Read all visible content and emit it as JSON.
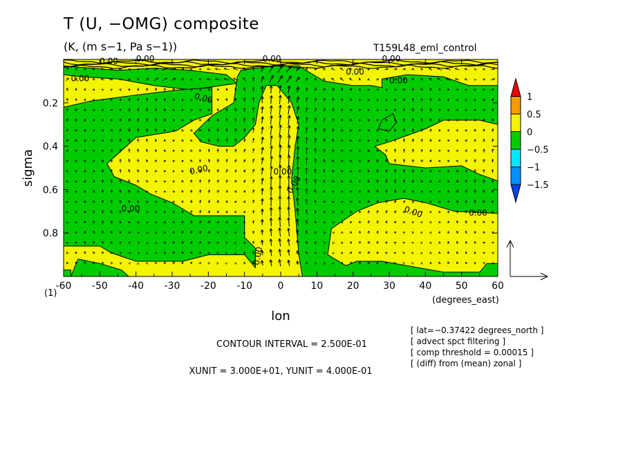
{
  "chart_data": {
    "type": "heatmap",
    "title": "T (U, −OMG) composite",
    "units": "(K, (m s−1, Pa s−1))",
    "run_label": "T159L48_eml_control",
    "xlabel": "lon",
    "x_units_label": "(degrees_east)",
    "ylabel": "sigma",
    "x_range": [
      -60,
      60
    ],
    "y_range": [
      0.0,
      1.0
    ],
    "x_ticks": [
      -60,
      -50,
      -40,
      -30,
      -20,
      -10,
      0,
      10,
      20,
      30,
      40,
      50,
      60
    ],
    "x_tick_labels": [
      "-60",
      "-50",
      "-40",
      "-30",
      "-20",
      "-10",
      "0",
      "10",
      "20",
      "30",
      "40",
      "50",
      "60"
    ],
    "y_ticks": [
      0.2,
      0.4,
      0.6,
      0.8
    ],
    "y_tick_labels": [
      "0.2",
      "0.4",
      "0.6",
      "0.8"
    ],
    "y_bottom_label": "(1)",
    "colorbar": {
      "levels": [
        "1",
        "0.5",
        "0",
        "−0.5",
        "−1",
        "−1.5"
      ],
      "colors": [
        "#ee0000",
        "#f59a00",
        "#f4f400",
        "#00cc00",
        "#00e8ff",
        "#0090ff",
        "#0044ee"
      ]
    },
    "contour_labels": [
      "0.00",
      "0.00",
      "0.00",
      "0.00",
      "0.00",
      "0.00",
      "0.00",
      "0.00",
      "0.00",
      "0.00",
      "0.00",
      "0.00",
      "0.00",
      "0.00",
      "0.00"
    ],
    "reference_vector": {
      "x_unit": 30.0,
      "y_unit": 0.4
    },
    "contour_interval_text": "CONTOUR INTERVAL = 2.500E-01",
    "unit_text": "XUNIT = 3.000E+01, YUNIT = 4.000E-01",
    "notes": [
      "[ lat=−0.37422 degrees_north ]",
      "[ advect spct filtering ]",
      "[ comp threshold = 0.00015 ]",
      "[ (diff) from (mean) zonal ]"
    ],
    "negative_regions_lon_sigma": [
      [
        [
          -60,
          0.03
        ],
        [
          -45,
          0.05
        ],
        [
          -35,
          0.04
        ],
        [
          -25,
          0.05
        ],
        [
          -15,
          0.07
        ],
        [
          -12,
          0.11
        ],
        [
          -25,
          0.14
        ],
        [
          -35,
          0.12
        ],
        [
          -45,
          0.09
        ],
        [
          -55,
          0.08
        ],
        [
          -60,
          0.07
        ]
      ],
      [
        [
          -60,
          0.22
        ],
        [
          -52,
          0.19
        ],
        [
          -38,
          0.16
        ],
        [
          -28,
          0.14
        ],
        [
          -19,
          0.13
        ],
        [
          -19,
          0.25
        ],
        [
          -24,
          0.28
        ],
        [
          -29,
          0.33
        ],
        [
          -40,
          0.36
        ],
        [
          -48,
          0.48
        ],
        [
          -46,
          0.54
        ],
        [
          -40,
          0.58
        ],
        [
          -36,
          0.62
        ],
        [
          -30,
          0.66
        ],
        [
          -24,
          0.72
        ],
        [
          -16,
          0.72
        ],
        [
          -10,
          0.72
        ],
        [
          -10,
          0.82
        ],
        [
          -7,
          0.87
        ],
        [
          -7,
          0.96
        ],
        [
          -10,
          0.9
        ],
        [
          -20,
          0.9
        ],
        [
          -27,
          0.93
        ],
        [
          -40,
          0.93
        ],
        [
          -47,
          0.89
        ],
        [
          -50,
          0.86
        ],
        [
          -60,
          0.86
        ]
      ],
      [
        [
          -19,
          0.26
        ],
        [
          -13,
          0.2
        ],
        [
          -12,
          0.08
        ],
        [
          -11,
          0.05
        ],
        [
          -2,
          0.03
        ],
        [
          5,
          0.03
        ],
        [
          9,
          0.07
        ],
        [
          12,
          0.1
        ],
        [
          20,
          0.12
        ],
        [
          25,
          0.12
        ],
        [
          28,
          0.13
        ],
        [
          28,
          0.09
        ],
        [
          35,
          0.07
        ],
        [
          45,
          0.08
        ],
        [
          52,
          0.12
        ],
        [
          60,
          0.12
        ],
        [
          60,
          0.3
        ],
        [
          55,
          0.28
        ],
        [
          45,
          0.28
        ],
        [
          40,
          0.32
        ],
        [
          35,
          0.35
        ],
        [
          30,
          0.38
        ],
        [
          26,
          0.4
        ],
        [
          29,
          0.44
        ],
        [
          30,
          0.48
        ],
        [
          40,
          0.5
        ],
        [
          50,
          0.49
        ],
        [
          55,
          0.53
        ],
        [
          60,
          0.56
        ],
        [
          60,
          0.71
        ],
        [
          48,
          0.7
        ],
        [
          40,
          0.66
        ],
        [
          34,
          0.64
        ],
        [
          27,
          0.66
        ],
        [
          21,
          0.7
        ],
        [
          14,
          0.78
        ],
        [
          13,
          0.9
        ],
        [
          18,
          0.95
        ],
        [
          21,
          0.93
        ],
        [
          28,
          0.93
        ],
        [
          45,
          0.98
        ],
        [
          55,
          0.98
        ],
        [
          57,
          0.94
        ],
        [
          60,
          0.94
        ],
        [
          60,
          1.0
        ],
        [
          6,
          1.0
        ],
        [
          5,
          0.9
        ],
        [
          4,
          0.7
        ],
        [
          3,
          0.55
        ],
        [
          4,
          0.4
        ],
        [
          5,
          0.3
        ],
        [
          3,
          0.2
        ],
        [
          -1,
          0.12
        ],
        [
          -4,
          0.12
        ],
        [
          -6,
          0.2
        ],
        [
          -7,
          0.3
        ],
        [
          -10,
          0.36
        ],
        [
          -13,
          0.4
        ],
        [
          -17,
          0.4
        ],
        [
          -22,
          0.38
        ],
        [
          -24,
          0.34
        ]
      ],
      [
        [
          -58,
          1.0
        ],
        [
          -56,
          0.92
        ],
        [
          -50,
          0.94
        ],
        [
          -44,
          0.97
        ],
        [
          -42,
          1.0
        ]
      ],
      [
        [
          -60,
          1.0
        ],
        [
          -60,
          0.97
        ],
        [
          -58,
          0.97
        ],
        [
          -58,
          1.0
        ]
      ],
      [
        [
          28,
          0.28
        ],
        [
          31,
          0.25
        ],
        [
          32,
          0.29
        ],
        [
          30,
          0.33
        ],
        [
          27,
          0.32
        ]
      ]
    ]
  }
}
